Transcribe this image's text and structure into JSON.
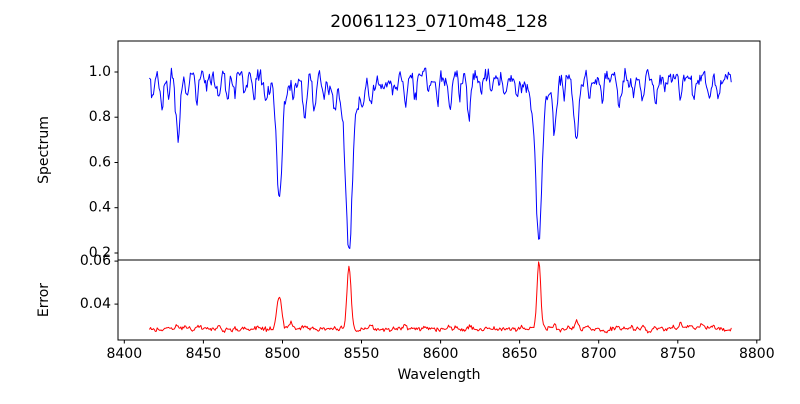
{
  "figure": {
    "background": "#ffffff"
  },
  "chart_data": {
    "type": "line",
    "title": "20061123_0710m48_128",
    "xlabel": "Wavelength",
    "x_range": [
      8416,
      8784
    ],
    "xlim": [
      8396,
      8802
    ],
    "xticks": [
      8400,
      8450,
      8500,
      8550,
      8600,
      8650,
      8700,
      8750,
      8800
    ],
    "xtick_labels": [
      "8400",
      "8450",
      "8500",
      "8550",
      "8600",
      "8650",
      "8700",
      "8750",
      "8800"
    ],
    "grid": false,
    "legend": "none",
    "sample_step": 0.6,
    "seed": 20061123,
    "panels": [
      {
        "name": "spectrum",
        "ylabel": "Spectrum",
        "color": "#0000ff",
        "ylim": [
          0.169,
          1.137
        ],
        "yticks": [
          1.0,
          0.8,
          0.6,
          0.4,
          0.2
        ],
        "ytick_labels": [
          "1.0",
          "0.8",
          "0.6",
          "0.4",
          "0.2"
        ],
        "continuum": 0.972,
        "noise_amp": 0.02,
        "main_lines": [
          {
            "center": 8498.0,
            "depth": 0.46,
            "sigma": 1.6,
            "wing_depth": 0.08,
            "wing_sigma": 5
          },
          {
            "center": 8542.1,
            "depth": 0.62,
            "sigma": 2.0,
            "wing_depth": 0.13,
            "wing_sigma": 7
          },
          {
            "center": 8662.1,
            "depth": 0.6,
            "sigma": 1.9,
            "wing_depth": 0.12,
            "wing_sigma": 6
          }
        ],
        "minor_lines": [
          {
            "center": 8418,
            "depth": 0.1,
            "sigma": 0.9
          },
          {
            "center": 8424,
            "depth": 0.12,
            "sigma": 1.0
          },
          {
            "center": 8428,
            "depth": 0.07,
            "sigma": 0.8
          },
          {
            "center": 8434,
            "depth": 0.25,
            "sigma": 1.4
          },
          {
            "center": 8440,
            "depth": 0.08,
            "sigma": 0.9
          },
          {
            "center": 8446,
            "depth": 0.1,
            "sigma": 0.9
          },
          {
            "center": 8452,
            "depth": 0.06,
            "sigma": 0.8
          },
          {
            "center": 8460,
            "depth": 0.1,
            "sigma": 1.0
          },
          {
            "center": 8465,
            "depth": 0.11,
            "sigma": 0.9
          },
          {
            "center": 8470,
            "depth": 0.07,
            "sigma": 0.8
          },
          {
            "center": 8476,
            "depth": 0.06,
            "sigma": 0.8
          },
          {
            "center": 8482,
            "depth": 0.09,
            "sigma": 0.9
          },
          {
            "center": 8490,
            "depth": 0.12,
            "sigma": 1.0
          },
          {
            "center": 8507,
            "depth": 0.08,
            "sigma": 0.9
          },
          {
            "center": 8514,
            "depth": 0.17,
            "sigma": 1.2
          },
          {
            "center": 8520,
            "depth": 0.12,
            "sigma": 1.0
          },
          {
            "center": 8526,
            "depth": 0.07,
            "sigma": 0.8
          },
          {
            "center": 8533,
            "depth": 0.1,
            "sigma": 0.9
          },
          {
            "center": 8551,
            "depth": 0.08,
            "sigma": 0.9
          },
          {
            "center": 8556,
            "depth": 0.1,
            "sigma": 0.9
          },
          {
            "center": 8564,
            "depth": 0.07,
            "sigma": 0.8
          },
          {
            "center": 8570,
            "depth": 0.06,
            "sigma": 0.8
          },
          {
            "center": 8578,
            "depth": 0.12,
            "sigma": 1.0
          },
          {
            "center": 8584,
            "depth": 0.08,
            "sigma": 0.8
          },
          {
            "center": 8592,
            "depth": 0.07,
            "sigma": 0.8
          },
          {
            "center": 8598,
            "depth": 0.1,
            "sigma": 0.9
          },
          {
            "center": 8606,
            "depth": 0.12,
            "sigma": 1.0
          },
          {
            "center": 8612,
            "depth": 0.08,
            "sigma": 0.8
          },
          {
            "center": 8618,
            "depth": 0.14,
            "sigma": 1.1
          },
          {
            "center": 8625,
            "depth": 0.07,
            "sigma": 0.8
          },
          {
            "center": 8632,
            "depth": 0.08,
            "sigma": 0.8
          },
          {
            "center": 8640,
            "depth": 0.09,
            "sigma": 0.9
          },
          {
            "center": 8648,
            "depth": 0.09,
            "sigma": 0.9
          },
          {
            "center": 8672,
            "depth": 0.2,
            "sigma": 1.3
          },
          {
            "center": 8678,
            "depth": 0.08,
            "sigma": 0.8
          },
          {
            "center": 8686,
            "depth": 0.26,
            "sigma": 1.5
          },
          {
            "center": 8694,
            "depth": 0.07,
            "sigma": 0.8
          },
          {
            "center": 8702,
            "depth": 0.09,
            "sigma": 0.9
          },
          {
            "center": 8713,
            "depth": 0.11,
            "sigma": 1.0
          },
          {
            "center": 8722,
            "depth": 0.08,
            "sigma": 0.8
          },
          {
            "center": 8728,
            "depth": 0.06,
            "sigma": 0.8
          },
          {
            "center": 8736,
            "depth": 0.09,
            "sigma": 0.9
          },
          {
            "center": 8742,
            "depth": 0.07,
            "sigma": 0.8
          },
          {
            "center": 8752,
            "depth": 0.09,
            "sigma": 0.9
          },
          {
            "center": 8760,
            "depth": 0.08,
            "sigma": 0.8
          },
          {
            "center": 8770,
            "depth": 0.1,
            "sigma": 0.9
          },
          {
            "center": 8776,
            "depth": 0.06,
            "sigma": 0.8
          }
        ]
      },
      {
        "name": "error",
        "ylabel": "Error",
        "color": "#ff0000",
        "ylim": [
          0.0233,
          0.0605
        ],
        "yticks": [
          0.06,
          0.04
        ],
        "ytick_labels": [
          "0.06",
          "0.04"
        ],
        "baseline": 0.0283,
        "noise_amp": 0.0006,
        "peaks": [
          {
            "center": 8434,
            "height": 0.0018,
            "sigma": 1.5
          },
          {
            "center": 8446,
            "height": 0.0012,
            "sigma": 1.0
          },
          {
            "center": 8460,
            "height": 0.0014,
            "sigma": 1.0
          },
          {
            "center": 8498.0,
            "height": 0.0155,
            "sigma": 1.5
          },
          {
            "center": 8505,
            "height": 0.0032,
            "sigma": 1.1
          },
          {
            "center": 8514,
            "height": 0.0015,
            "sigma": 1.0
          },
          {
            "center": 8542.1,
            "height": 0.0287,
            "sigma": 1.3
          },
          {
            "center": 8556,
            "height": 0.0014,
            "sigma": 1.0
          },
          {
            "center": 8578,
            "height": 0.0012,
            "sigma": 1.0
          },
          {
            "center": 8606,
            "height": 0.0012,
            "sigma": 1.0
          },
          {
            "center": 8618,
            "height": 0.0013,
            "sigma": 1.0
          },
          {
            "center": 8662.1,
            "height": 0.0312,
            "sigma": 1.2
          },
          {
            "center": 8672,
            "height": 0.0022,
            "sigma": 1.1
          },
          {
            "center": 8686,
            "height": 0.0028,
            "sigma": 1.3
          },
          {
            "center": 8713,
            "height": 0.0013,
            "sigma": 1.0
          },
          {
            "center": 8752,
            "height": 0.0022,
            "sigma": 1.0
          },
          {
            "center": 8757,
            "height": 0.002,
            "sigma": 0.9
          },
          {
            "center": 8765,
            "height": 0.0028,
            "sigma": 1.1
          },
          {
            "center": 8772,
            "height": 0.0014,
            "sigma": 0.9
          }
        ]
      }
    ]
  }
}
